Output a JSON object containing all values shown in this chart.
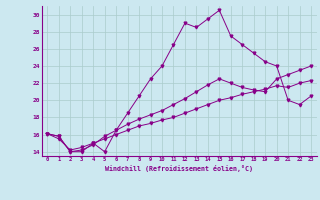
{
  "xlabel": "Windchill (Refroidissement éolien,°C)",
  "background_color": "#cce8f0",
  "line_color": "#880088",
  "grid_color": "#aacccc",
  "ylim": [
    13.5,
    31.0
  ],
  "xlim": [
    -0.5,
    23.5
  ],
  "yticks": [
    14,
    16,
    18,
    20,
    22,
    24,
    26,
    28,
    30
  ],
  "xticks": [
    0,
    1,
    2,
    3,
    4,
    5,
    6,
    7,
    8,
    9,
    10,
    11,
    12,
    13,
    14,
    15,
    16,
    17,
    18,
    19,
    20,
    21,
    22,
    23
  ],
  "series": [
    [
      16.1,
      15.8,
      14.0,
      14.0,
      15.0,
      14.0,
      16.5,
      18.5,
      20.5,
      22.5,
      24.0,
      26.5,
      29.0,
      28.5,
      29.5,
      30.5,
      27.5,
      26.5,
      25.5,
      24.5,
      24.0,
      20.0,
      19.5,
      20.5
    ],
    [
      16.1,
      15.8,
      14.0,
      14.2,
      14.8,
      15.8,
      16.5,
      17.2,
      17.8,
      18.3,
      18.8,
      19.5,
      20.2,
      21.0,
      21.8,
      22.5,
      22.0,
      21.5,
      21.2,
      21.0,
      22.5,
      23.0,
      23.5,
      24.0
    ],
    [
      16.1,
      15.5,
      14.2,
      14.5,
      15.0,
      15.5,
      16.0,
      16.5,
      17.0,
      17.3,
      17.7,
      18.0,
      18.5,
      19.0,
      19.5,
      20.0,
      20.3,
      20.7,
      21.0,
      21.3,
      21.7,
      21.5,
      22.0,
      22.3
    ]
  ]
}
